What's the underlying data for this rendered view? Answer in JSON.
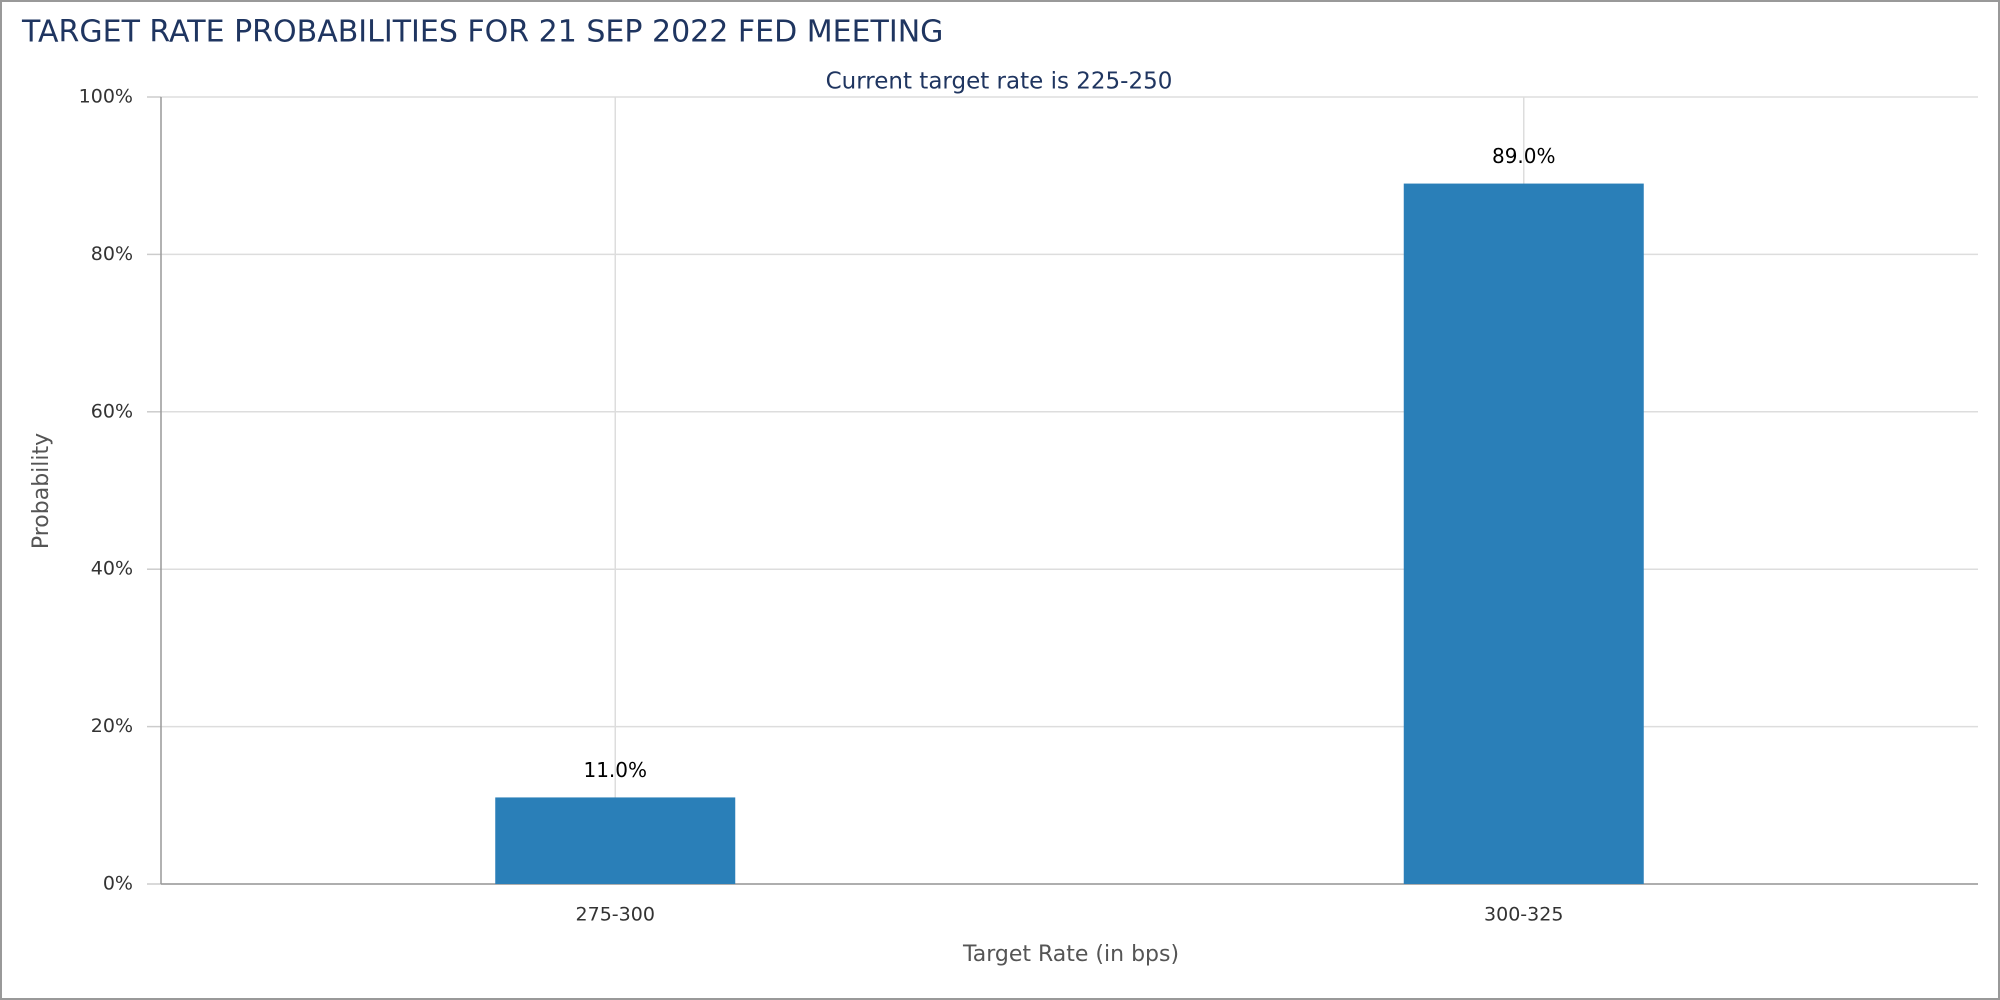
{
  "chart_data": {
    "type": "bar",
    "title": "TARGET RATE PROBABILITIES FOR 21 SEP 2022 FED MEETING",
    "subtitle": "Current target rate is 225-250",
    "x_label": "Target Rate (in bps)",
    "y_label": "Probability",
    "categories": [
      "275-300",
      "300-325"
    ],
    "values": [
      11,
      89
    ],
    "value_labels": [
      "11.0%",
      "89.0%"
    ],
    "color": "#2a7fb8",
    "ylim": [
      0,
      100
    ],
    "yticks": [
      {
        "value": 0,
        "label": "0%"
      },
      {
        "value": 20,
        "label": "20%"
      },
      {
        "value": 40,
        "label": "40%"
      },
      {
        "value": 60,
        "label": "60%"
      },
      {
        "value": 80,
        "label": "80%"
      },
      {
        "value": 100,
        "label": "100%"
      }
    ],
    "grid": true
  }
}
